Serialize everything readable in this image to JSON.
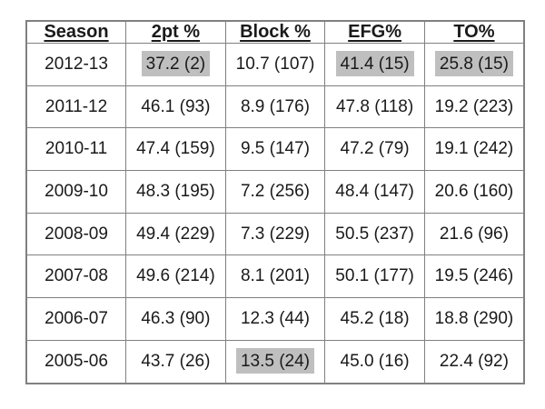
{
  "styles": {
    "highlight_color": "#bfbfbf",
    "border_color": "#808080",
    "text_color": "#1a1a1a",
    "background_color": "#ffffff"
  },
  "chart_data": {
    "type": "table",
    "title": "",
    "columns": [
      "Season",
      "2pt %",
      "Block %",
      "EFG%",
      "TO%"
    ],
    "rows": [
      {
        "season": "2012-13",
        "values": [
          {
            "text": "37.2 (2)",
            "highlight": true
          },
          {
            "text": "10.7 (107)",
            "highlight": false
          },
          {
            "text": "41.4 (15)",
            "highlight": true
          },
          {
            "text": "25.8 (15)",
            "highlight": true
          }
        ]
      },
      {
        "season": "2011-12",
        "values": [
          {
            "text": "46.1 (93)",
            "highlight": false
          },
          {
            "text": "8.9 (176)",
            "highlight": false
          },
          {
            "text": "47.8 (118)",
            "highlight": false
          },
          {
            "text": "19.2 (223)",
            "highlight": false
          }
        ]
      },
      {
        "season": "2010-11",
        "values": [
          {
            "text": "47.4 (159)",
            "highlight": false
          },
          {
            "text": "9.5 (147)",
            "highlight": false
          },
          {
            "text": "47.2 (79)",
            "highlight": false
          },
          {
            "text": "19.1 (242)",
            "highlight": false
          }
        ]
      },
      {
        "season": "2009-10",
        "values": [
          {
            "text": "48.3 (195)",
            "highlight": false
          },
          {
            "text": "7.2 (256)",
            "highlight": false
          },
          {
            "text": "48.4 (147)",
            "highlight": false
          },
          {
            "text": "20.6 (160)",
            "highlight": false
          }
        ]
      },
      {
        "season": "2008-09",
        "values": [
          {
            "text": "49.4 (229)",
            "highlight": false
          },
          {
            "text": "7.3 (229)",
            "highlight": false
          },
          {
            "text": "50.5 (237)",
            "highlight": false
          },
          {
            "text": "21.6 (96)",
            "highlight": false
          }
        ]
      },
      {
        "season": "2007-08",
        "values": [
          {
            "text": "49.6 (214)",
            "highlight": false
          },
          {
            "text": "8.1 (201)",
            "highlight": false
          },
          {
            "text": "50.1 (177)",
            "highlight": false
          },
          {
            "text": "19.5 (246)",
            "highlight": false
          }
        ]
      },
      {
        "season": "2006-07",
        "values": [
          {
            "text": "46.3 (90)",
            "highlight": false
          },
          {
            "text": "12.3 (44)",
            "highlight": false
          },
          {
            "text": "45.2 (18)",
            "highlight": false
          },
          {
            "text": "18.8 (290)",
            "highlight": false
          }
        ]
      },
      {
        "season": "2005-06",
        "values": [
          {
            "text": "43.7 (26)",
            "highlight": false
          },
          {
            "text": "13.5 (24)",
            "highlight": true
          },
          {
            "text": "45.0 (16)",
            "highlight": false
          },
          {
            "text": "22.4 (92)",
            "highlight": false
          }
        ]
      }
    ]
  }
}
